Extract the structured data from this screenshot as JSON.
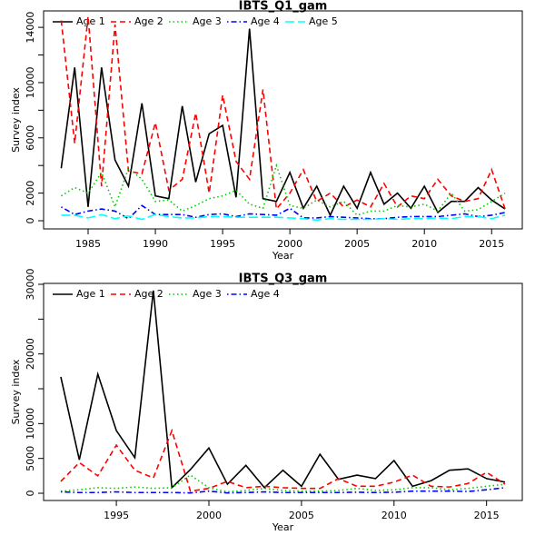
{
  "chart_data": [
    {
      "type": "line",
      "title": "IBTS_Q1_gam",
      "x_label": "Year",
      "y_label": "Survey index",
      "x": [
        1983,
        1984,
        1985,
        1986,
        1987,
        1988,
        1989,
        1990,
        1991,
        1992,
        1993,
        1994,
        1995,
        1996,
        1997,
        1998,
        1999,
        2000,
        2001,
        2002,
        2003,
        2004,
        2005,
        2006,
        2007,
        2008,
        2009,
        2010,
        2011,
        2012,
        2013,
        2014,
        2015,
        2016
      ],
      "xlim": [
        1981.69,
        2017.28
      ],
      "xticks": [
        1985,
        1990,
        1995,
        2000,
        2005,
        2010,
        2015
      ],
      "ylim": [
        -590,
        15190
      ],
      "yticks": [
        0,
        2000,
        6000,
        10000,
        14000
      ],
      "yminorticks": [
        4000,
        8000,
        12000
      ],
      "legend": "top-left",
      "series": [
        {
          "name": "Age 1",
          "color": "#000000",
          "linestyle": "solid",
          "values": [
            3800,
            11100,
            1000,
            11100,
            4400,
            2500,
            8500,
            1800,
            1600,
            8300,
            2800,
            6300,
            6900,
            1700,
            13900,
            1600,
            1400,
            3500,
            900,
            2500,
            400,
            2500,
            900,
            3500,
            1200,
            2000,
            900,
            2500,
            600,
            1400,
            1400,
            2400,
            1500,
            850
          ]
        },
        {
          "name": "Age 2",
          "color": "#ff0000",
          "linestyle": "dashed",
          "values": [
            14500,
            5600,
            14800,
            2500,
            14200,
            3600,
            3400,
            7100,
            2200,
            3000,
            7800,
            2000,
            9100,
            4300,
            3000,
            9500,
            850,
            2000,
            3700,
            1400,
            2000,
            1000,
            1500,
            1000,
            2700,
            1000,
            1800,
            1600,
            3000,
            1800,
            1400,
            1600,
            3700,
            850
          ]
        },
        {
          "name": "Age 3",
          "color": "#00cd00",
          "linestyle": "dotted",
          "values": [
            1800,
            2400,
            2000,
            3500,
            1000,
            3800,
            3000,
            1400,
            1500,
            700,
            1100,
            1600,
            1800,
            2200,
            1200,
            900,
            4000,
            1100,
            900,
            1500,
            1000,
            1400,
            400,
            700,
            700,
            1100,
            1000,
            1200,
            700,
            2000,
            700,
            800,
            1400,
            2000
          ]
        },
        {
          "name": "Age 4",
          "color": "#0000ff",
          "linestyle": "dotdash",
          "values": [
            1000,
            450,
            700,
            850,
            700,
            150,
            1100,
            450,
            450,
            450,
            250,
            450,
            500,
            300,
            500,
            450,
            400,
            900,
            200,
            200,
            300,
            250,
            200,
            150,
            150,
            250,
            300,
            300,
            300,
            400,
            500,
            300,
            400,
            600
          ]
        },
        {
          "name": "Age 5",
          "color": "#00ffff",
          "linestyle": "longdash",
          "values": [
            400,
            400,
            200,
            450,
            150,
            350,
            100,
            450,
            300,
            200,
            200,
            300,
            300,
            250,
            250,
            250,
            250,
            200,
            150,
            50,
            150,
            100,
            100,
            100,
            150,
            100,
            150,
            150,
            200,
            150,
            300,
            300,
            150,
            400
          ]
        }
      ]
    },
    {
      "type": "line",
      "title": "IBTS_Q3_gam",
      "x_label": "Year",
      "y_label": "Survey index",
      "x": [
        1992,
        1993,
        1994,
        1995,
        1996,
        1997,
        1998,
        1999,
        2000,
        2001,
        2002,
        2003,
        2004,
        2005,
        2006,
        2007,
        2008,
        2009,
        2010,
        2011,
        2012,
        2013,
        2014,
        2015,
        2016
      ],
      "xlim": [
        1991.07,
        2016.93
      ],
      "xticks": [
        1995,
        2000,
        2005,
        2010,
        2015
      ],
      "ylim": [
        -1040,
        30130
      ],
      "yticks": [
        0,
        5000,
        10000,
        20000,
        30000
      ],
      "yminorticks": [
        15000,
        25000
      ],
      "legend": "top-left",
      "series": [
        {
          "name": "Age 1",
          "color": "#000000",
          "linestyle": "solid",
          "values": [
            16700,
            4800,
            17100,
            9000,
            5100,
            29100,
            800,
            3400,
            6500,
            1300,
            4000,
            800,
            3300,
            1000,
            5600,
            2000,
            2600,
            2100,
            4700,
            1000,
            1800,
            3300,
            3500,
            2100,
            1600
          ]
        },
        {
          "name": "Age 2",
          "color": "#ff0000",
          "linestyle": "dashed",
          "values": [
            1700,
            4400,
            2500,
            6900,
            3300,
            2200,
            9000,
            300,
            700,
            1700,
            800,
            1000,
            800,
            700,
            700,
            2100,
            1000,
            1000,
            1600,
            2600,
            1000,
            900,
            1400,
            3000,
            1300
          ]
        },
        {
          "name": "Age 3",
          "color": "#00cd00",
          "linestyle": "dotted",
          "values": [
            300,
            500,
            800,
            700,
            900,
            700,
            800,
            2600,
            800,
            200,
            400,
            700,
            400,
            300,
            300,
            400,
            700,
            400,
            500,
            800,
            800,
            500,
            700,
            1000,
            1300
          ]
        },
        {
          "name": "Age 4",
          "color": "#0000ff",
          "linestyle": "dotdash",
          "values": [
            200,
            100,
            100,
            200,
            100,
            100,
            100,
            50,
            300,
            50,
            100,
            200,
            100,
            100,
            100,
            100,
            150,
            100,
            150,
            300,
            300,
            300,
            250,
            500,
            800
          ]
        }
      ]
    }
  ]
}
